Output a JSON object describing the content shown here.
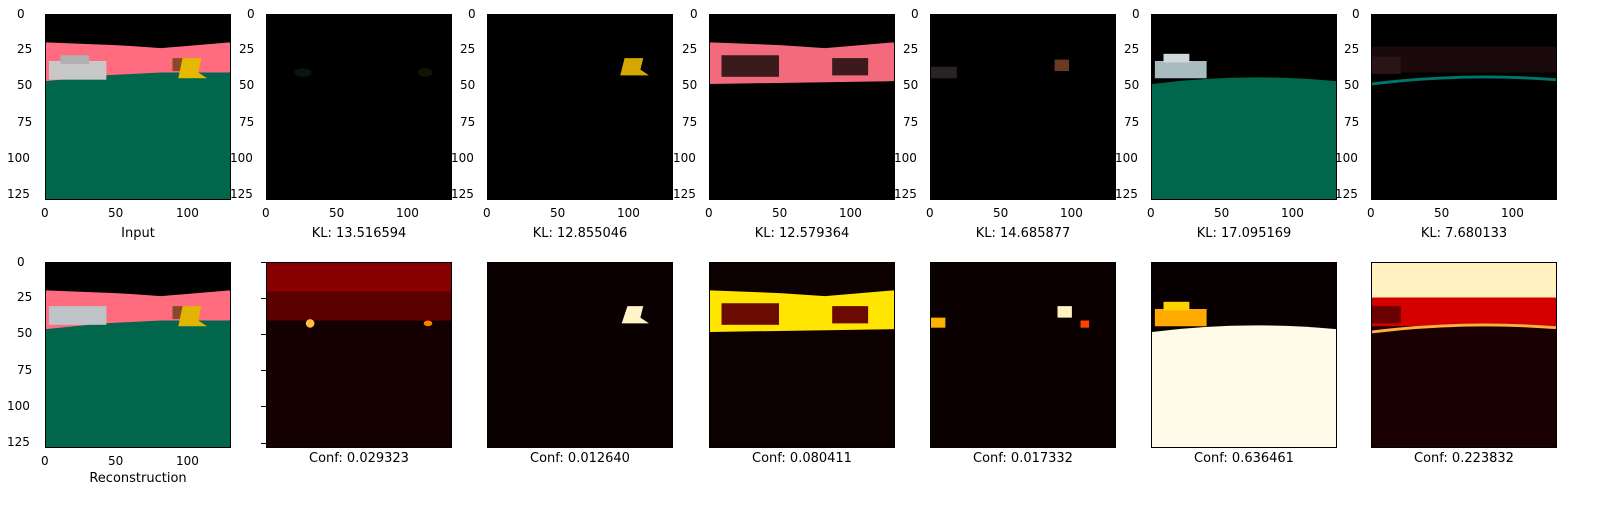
{
  "axis": {
    "y_ticks": [
      "0",
      "25",
      "50",
      "75",
      "100",
      "125"
    ],
    "x_ticks": [
      "0",
      "50",
      "100"
    ]
  },
  "row1": {
    "input_caption": "Input",
    "kl_captions": [
      "KL: 13.516594",
      "KL: 12.855046",
      "KL: 12.579364",
      "KL: 14.685877",
      "KL: 17.095169",
      "KL: 7.680133"
    ]
  },
  "row2": {
    "reconstruction_caption": "Reconstruction",
    "conf_captions": [
      "Conf: 0.029323",
      "Conf: 0.012640",
      "Conf: 0.080411",
      "Conf: 0.017332",
      "Conf: 0.636461",
      "Conf: 0.223832"
    ]
  },
  "colors": {
    "sky": "#000000",
    "wall_pink": "#ff6b7f",
    "ground_teal": "#00664c",
    "object_yellow": "#e6b800",
    "heat_dark": "#1a0000",
    "heat_hot": "#fff8e0"
  }
}
